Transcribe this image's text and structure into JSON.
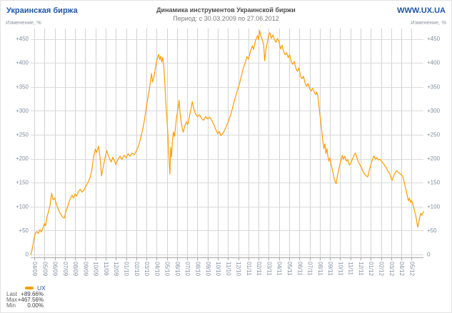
{
  "header": {
    "exchange_name": "Украинская биржа",
    "website": "WWW.UX.UA",
    "chart_title": "Динамика инструментов Украинской биржи",
    "chart_period": "Период: с 30.03.2009 по 27.06.2012",
    "axis_caption_left": "Изменение, %",
    "axis_caption_right": "Изменение, %"
  },
  "legend": {
    "series_label": "UX"
  },
  "stats": {
    "rows": [
      {
        "label": "Last",
        "value": "+89.66%"
      },
      {
        "label": "Max",
        "value": "+467.56%"
      },
      {
        "label": "Min",
        "value": "0.00%"
      }
    ]
  },
  "colors": {
    "accent_blue": "#1f55a5",
    "legend_blue": "#2f4f9e",
    "series_orange": "#ff9d00",
    "grid_horizontal": "#dadada",
    "grid_vertical": "#d2d2d2",
    "axis_line": "#a6a6a6",
    "tick_text": "#7e8da0"
  },
  "chart_data": {
    "type": "line",
    "title": "Динамика инструментов Украинской биржи",
    "subtitle": "Период: с 30.03.2009 по 27.06.2012",
    "ylabel": "Изменение, %",
    "ylim": [
      0,
      470
    ],
    "y_tick_values": [
      450,
      400,
      350,
      300,
      250,
      200,
      150,
      100,
      50,
      0
    ],
    "grid": true,
    "legend_position": "bottom-left",
    "x_unit": "months, tick 0 = 04/09",
    "x_tick_labels": [
      "04/09",
      "05/09",
      "06/09",
      "07/09",
      "08/09",
      "09/09",
      "10/09",
      "11/09",
      "12/09",
      "01/10",
      "02/10",
      "03/10",
      "04/10",
      "05/10",
      "06/10",
      "07/10",
      "08/10",
      "09/10",
      "10/10",
      "11/10",
      "12/10",
      "01/11",
      "02/11",
      "03/11",
      "04/11",
      "05/11",
      "06/11",
      "07/11",
      "08/11",
      "09/11",
      "10/11",
      "11/11",
      "12/11",
      "01/12",
      "02/12",
      "03/12",
      "04/12",
      "05/12"
    ],
    "series": [
      {
        "name": "UX",
        "color": "#ff9d00",
        "last": 89.66,
        "max": 467.56,
        "min": 0.0,
        "points": [
          [
            -0.35,
            0
          ],
          [
            -0.28,
            4
          ],
          [
            -0.15,
            18
          ],
          [
            0.0,
            36
          ],
          [
            0.1,
            44
          ],
          [
            0.25,
            48
          ],
          [
            0.4,
            44
          ],
          [
            0.55,
            52
          ],
          [
            0.7,
            47
          ],
          [
            0.85,
            55
          ],
          [
            1.0,
            65
          ],
          [
            1.1,
            60
          ],
          [
            1.25,
            78
          ],
          [
            1.4,
            90
          ],
          [
            1.55,
            103
          ],
          [
            1.7,
            128
          ],
          [
            1.85,
            114
          ],
          [
            2.0,
            118
          ],
          [
            2.2,
            103
          ],
          [
            2.4,
            92
          ],
          [
            2.6,
            84
          ],
          [
            2.8,
            78
          ],
          [
            2.95,
            76
          ],
          [
            3.1,
            90
          ],
          [
            3.25,
            98
          ],
          [
            3.4,
            110
          ],
          [
            3.55,
            117
          ],
          [
            3.7,
            124
          ],
          [
            3.85,
            118
          ],
          [
            4.0,
            126
          ],
          [
            4.15,
            122
          ],
          [
            4.3,
            130
          ],
          [
            4.5,
            136
          ],
          [
            4.7,
            130
          ],
          [
            4.9,
            136
          ],
          [
            5.1,
            144
          ],
          [
            5.3,
            152
          ],
          [
            5.5,
            162
          ],
          [
            5.65,
            178
          ],
          [
            5.8,
            200
          ],
          [
            5.9,
            212
          ],
          [
            6.0,
            220
          ],
          [
            6.1,
            213
          ],
          [
            6.2,
            219
          ],
          [
            6.3,
            226
          ],
          [
            6.45,
            203
          ],
          [
            6.6,
            164
          ],
          [
            6.7,
            176
          ],
          [
            6.85,
            192
          ],
          [
            7.0,
            208
          ],
          [
            7.1,
            217
          ],
          [
            7.25,
            207
          ],
          [
            7.4,
            199
          ],
          [
            7.55,
            193
          ],
          [
            7.7,
            203
          ],
          [
            7.85,
            196
          ],
          [
            8.0,
            188
          ],
          [
            8.2,
            198
          ],
          [
            8.4,
            205
          ],
          [
            8.6,
            198
          ],
          [
            8.8,
            207
          ],
          [
            9.0,
            202
          ],
          [
            9.2,
            210
          ],
          [
            9.4,
            205
          ],
          [
            9.6,
            212
          ],
          [
            9.8,
            208
          ],
          [
            10.0,
            216
          ],
          [
            10.2,
            225
          ],
          [
            10.4,
            240
          ],
          [
            10.6,
            258
          ],
          [
            10.8,
            280
          ],
          [
            10.95,
            302
          ],
          [
            11.1,
            322
          ],
          [
            11.25,
            340
          ],
          [
            11.4,
            362
          ],
          [
            11.5,
            378
          ],
          [
            11.6,
            360
          ],
          [
            11.75,
            372
          ],
          [
            11.9,
            392
          ],
          [
            12.0,
            404
          ],
          [
            12.1,
            412
          ],
          [
            12.2,
            418
          ],
          [
            12.3,
            407
          ],
          [
            12.4,
            414
          ],
          [
            12.5,
            402
          ],
          [
            12.6,
            411
          ],
          [
            12.7,
            392
          ],
          [
            12.8,
            358
          ],
          [
            12.9,
            316
          ],
          [
            13.0,
            288
          ],
          [
            13.1,
            252
          ],
          [
            13.2,
            206
          ],
          [
            13.3,
            168
          ],
          [
            13.38,
            224
          ],
          [
            13.46,
            204
          ],
          [
            13.55,
            238
          ],
          [
            13.65,
            256
          ],
          [
            13.75,
            246
          ],
          [
            13.85,
            266
          ],
          [
            13.95,
            286
          ],
          [
            14.1,
            304
          ],
          [
            14.2,
            322
          ],
          [
            14.3,
            294
          ],
          [
            14.45,
            271
          ],
          [
            14.6,
            255
          ],
          [
            14.75,
            267
          ],
          [
            14.9,
            277
          ],
          [
            15.05,
            271
          ],
          [
            15.2,
            287
          ],
          [
            15.35,
            302
          ],
          [
            15.5,
            319
          ],
          [
            15.65,
            304
          ],
          [
            15.8,
            294
          ],
          [
            16.0,
            288
          ],
          [
            16.2,
            292
          ],
          [
            16.4,
            284
          ],
          [
            16.6,
            280
          ],
          [
            16.8,
            288
          ],
          [
            17.0,
            283
          ],
          [
            17.2,
            287
          ],
          [
            17.4,
            280
          ],
          [
            17.6,
            272
          ],
          [
            17.8,
            261
          ],
          [
            18.0,
            252
          ],
          [
            18.15,
            257
          ],
          [
            18.3,
            248
          ],
          [
            18.5,
            253
          ],
          [
            18.7,
            261
          ],
          [
            18.9,
            271
          ],
          [
            19.1,
            282
          ],
          [
            19.3,
            294
          ],
          [
            19.5,
            311
          ],
          [
            19.7,
            327
          ],
          [
            19.9,
            341
          ],
          [
            20.1,
            354
          ],
          [
            20.3,
            372
          ],
          [
            20.5,
            389
          ],
          [
            20.7,
            401
          ],
          [
            20.85,
            413
          ],
          [
            21.0,
            408
          ],
          [
            21.2,
            424
          ],
          [
            21.4,
            436
          ],
          [
            21.5,
            428
          ],
          [
            21.7,
            447
          ],
          [
            21.9,
            457
          ],
          [
            22.0,
            449
          ],
          [
            22.1,
            467.56
          ],
          [
            22.2,
            458
          ],
          [
            22.35,
            449
          ],
          [
            22.5,
            437
          ],
          [
            22.6,
            404
          ],
          [
            22.7,
            427
          ],
          [
            22.85,
            442
          ],
          [
            23.0,
            459
          ],
          [
            23.1,
            463
          ],
          [
            23.25,
            451
          ],
          [
            23.4,
            458
          ],
          [
            23.55,
            449
          ],
          [
            23.7,
            443
          ],
          [
            23.85,
            451
          ],
          [
            24.0,
            444
          ],
          [
            24.15,
            429
          ],
          [
            24.3,
            437
          ],
          [
            24.45,
            424
          ],
          [
            24.6,
            417
          ],
          [
            24.75,
            421
          ],
          [
            24.9,
            411
          ],
          [
            25.05,
            417
          ],
          [
            25.2,
            402
          ],
          [
            25.35,
            397
          ],
          [
            25.5,
            403
          ],
          [
            25.65,
            389
          ],
          [
            25.8,
            382
          ],
          [
            25.95,
            389
          ],
          [
            26.1,
            373
          ],
          [
            26.25,
            367
          ],
          [
            26.4,
            372
          ],
          [
            26.55,
            359
          ],
          [
            26.7,
            351
          ],
          [
            26.85,
            357
          ],
          [
            27.0,
            347
          ],
          [
            27.15,
            341
          ],
          [
            27.3,
            347
          ],
          [
            27.45,
            339
          ],
          [
            27.6,
            334
          ],
          [
            27.7,
            339
          ],
          [
            27.8,
            331
          ],
          [
            27.9,
            314
          ],
          [
            28.0,
            294
          ],
          [
            28.1,
            277
          ],
          [
            28.2,
            257
          ],
          [
            28.3,
            237
          ],
          [
            28.4,
            221
          ],
          [
            28.5,
            231
          ],
          [
            28.6,
            211
          ],
          [
            28.7,
            221
          ],
          [
            28.8,
            204
          ],
          [
            28.9,
            195
          ],
          [
            29.0,
            202
          ],
          [
            29.1,
            189
          ],
          [
            29.2,
            179
          ],
          [
            29.3,
            171
          ],
          [
            29.4,
            159
          ],
          [
            29.5,
            153
          ],
          [
            29.6,
            148
          ],
          [
            29.7,
            161
          ],
          [
            29.8,
            171
          ],
          [
            29.9,
            181
          ],
          [
            30.0,
            191
          ],
          [
            30.1,
            199
          ],
          [
            30.2,
            207
          ],
          [
            30.3,
            199
          ],
          [
            30.45,
            205
          ],
          [
            30.6,
            195
          ],
          [
            30.75,
            198
          ],
          [
            30.9,
            187
          ],
          [
            31.05,
            191
          ],
          [
            31.2,
            199
          ],
          [
            31.35,
            207
          ],
          [
            31.5,
            212
          ],
          [
            31.65,
            202
          ],
          [
            31.8,
            192
          ],
          [
            31.95,
            187
          ],
          [
            32.1,
            181
          ],
          [
            32.3,
            171
          ],
          [
            32.5,
            165
          ],
          [
            32.7,
            162
          ],
          [
            32.85,
            175
          ],
          [
            33.0,
            187
          ],
          [
            33.15,
            197
          ],
          [
            33.3,
            206
          ],
          [
            33.45,
            199
          ],
          [
            33.6,
            202
          ],
          [
            33.75,
            197
          ],
          [
            33.9,
            199
          ],
          [
            34.05,
            195
          ],
          [
            34.2,
            191
          ],
          [
            34.35,
            186
          ],
          [
            34.5,
            182
          ],
          [
            34.65,
            175
          ],
          [
            34.85,
            169
          ],
          [
            35.0,
            159
          ],
          [
            35.1,
            155
          ],
          [
            35.25,
            164
          ],
          [
            35.4,
            171
          ],
          [
            35.55,
            175
          ],
          [
            35.7,
            171
          ],
          [
            35.85,
            169
          ],
          [
            36.0,
            167
          ],
          [
            36.15,
            163
          ],
          [
            36.3,
            149
          ],
          [
            36.45,
            135
          ],
          [
            36.6,
            121
          ],
          [
            36.7,
            112
          ],
          [
            36.8,
            118
          ],
          [
            36.9,
            109
          ],
          [
            37.0,
            113
          ],
          [
            37.1,
            107
          ],
          [
            37.2,
            99
          ],
          [
            37.3,
            91
          ],
          [
            37.45,
            77
          ],
          [
            37.6,
            57
          ],
          [
            37.7,
            66
          ],
          [
            37.8,
            78
          ],
          [
            37.9,
            86
          ],
          [
            38.0,
            82
          ],
          [
            38.1,
            87
          ],
          [
            38.2,
            89.66
          ]
        ]
      }
    ]
  }
}
